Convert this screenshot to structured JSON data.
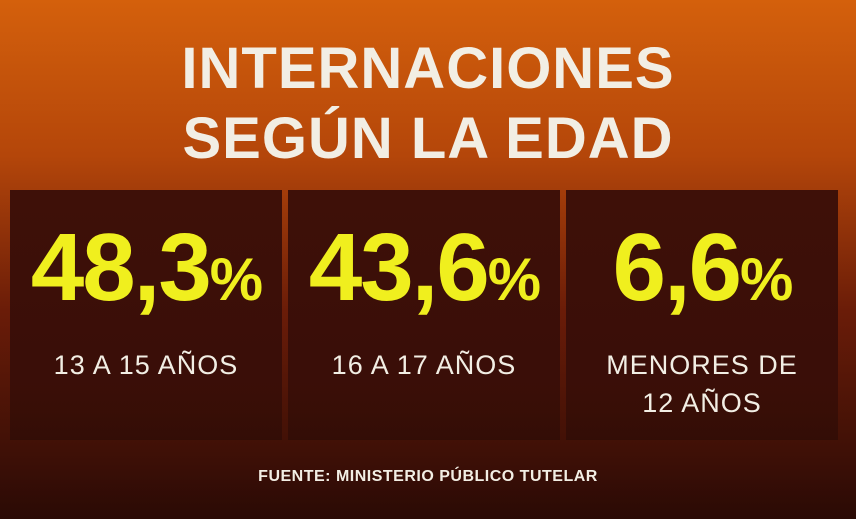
{
  "header": {
    "title_lines": [
      "INTERNACIONES",
      "SEGÚN LA EDAD"
    ]
  },
  "stats": [
    {
      "number": "48,3",
      "unit": "%",
      "label_lines": [
        "13 A 15 AÑOS"
      ]
    },
    {
      "number": "43,6",
      "unit": "%",
      "label_lines": [
        "16 A 17 AÑOS"
      ]
    },
    {
      "number": "6,6",
      "unit": "%",
      "label_lines": [
        "MENORES DE",
        "12 AÑOS"
      ]
    }
  ],
  "footer": {
    "source": "FUENTE: MINISTERIO PÚBLICO TUTELAR"
  }
}
